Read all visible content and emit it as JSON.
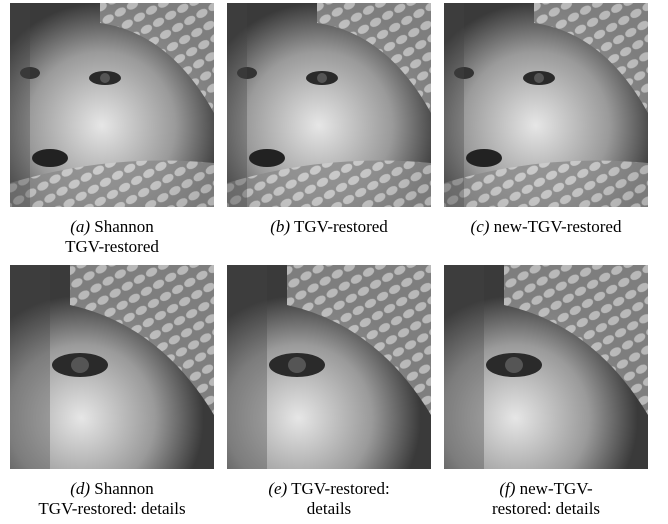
{
  "figures": [
    {
      "label": "(a)",
      "lines": [
        "Shannon",
        "TGV-restored"
      ]
    },
    {
      "label": "(b)",
      "lines": [
        "TGV-restored"
      ]
    },
    {
      "label": "(c)",
      "lines": [
        "new-TGV-restored"
      ]
    },
    {
      "label": "(d)",
      "lines": [
        "Shannon",
        "TGV-restored: details"
      ]
    },
    {
      "label": "(e)",
      "lines": [
        "TGV-restored:",
        "details"
      ]
    },
    {
      "label": "(f)",
      "lines": [
        "new-TGV-",
        "restored: details"
      ]
    }
  ]
}
